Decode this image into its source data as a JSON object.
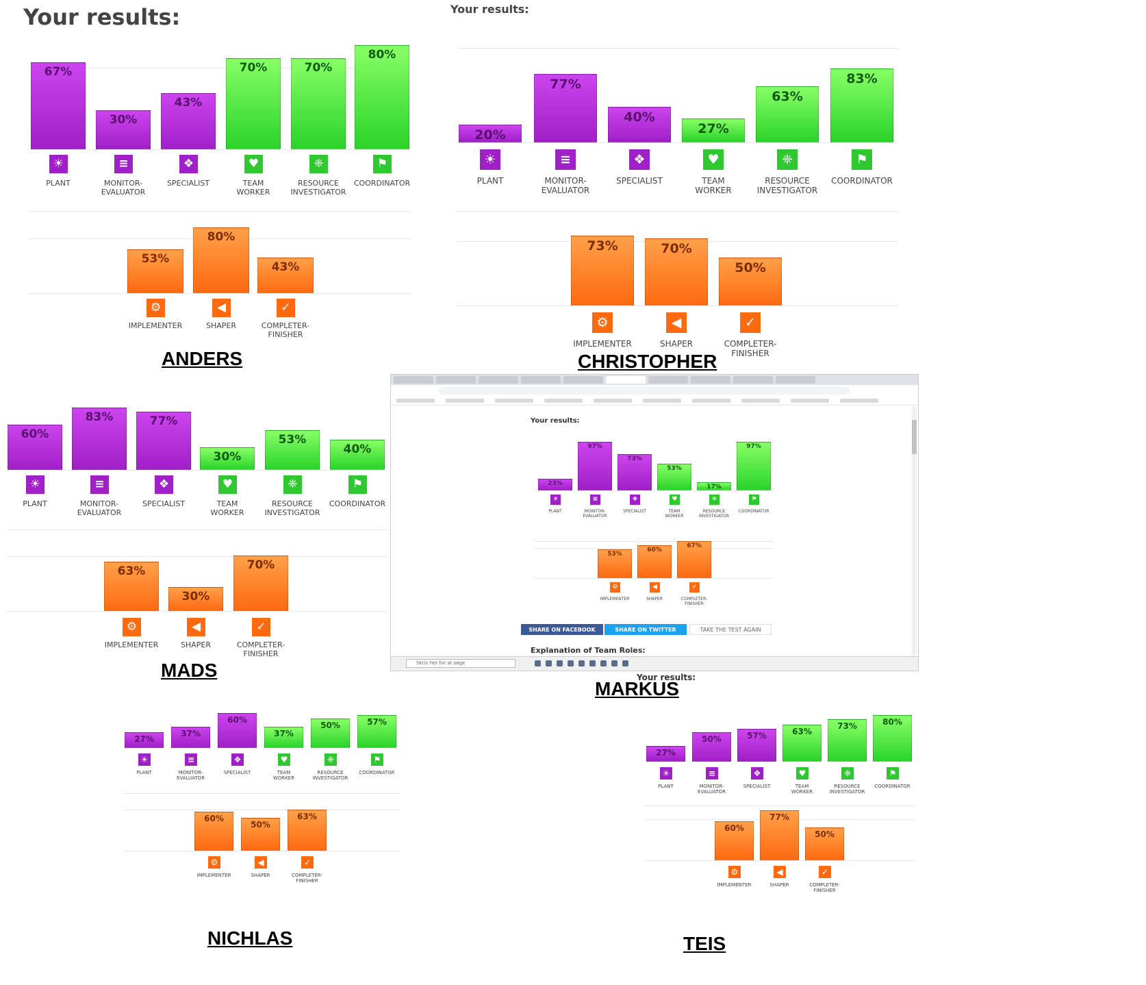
{
  "headings": {
    "primary": "Your results:",
    "secondary": "Your results:",
    "markus": "Your results:",
    "teis": "Your results:"
  },
  "markus_ui": {
    "share_facebook": "SHARE ON FACEBOOK",
    "share_twitter": "SHARE ON TWITTER",
    "retake": "TAKE THE TEST AGAIN",
    "explanation": "Explanation of Team Roles:",
    "taskbar_search": "Skriv her for at søge"
  },
  "roles": {
    "top": [
      "PLANT",
      "MONITOR-EVALUATOR",
      "SPECIALIST",
      "TEAM WORKER",
      "RESOURCE INVESTIGATOR",
      "COORDINATOR"
    ],
    "bottom": [
      "IMPLEMENTER",
      "SHAPER",
      "COMPLETER-FINISHER"
    ]
  },
  "colors": {
    "purple": "#a020c8",
    "green": "#2ad32a",
    "orange": "#ff6a10"
  },
  "icons": {
    "top": [
      "lightbulb-icon",
      "document-icon",
      "puzzle-icon",
      "handshake-icon",
      "network-icon",
      "flag-icon"
    ],
    "bottom": [
      "gears-icon",
      "megaphone-icon",
      "checkbox-icon"
    ]
  },
  "chart_data": [
    {
      "type": "bar",
      "person": "ANDERS",
      "categories": [
        "PLANT",
        "MONITOR-EVALUATOR",
        "SPECIALIST",
        "TEAM WORKER",
        "RESOURCE INVESTIGATOR",
        "COORDINATOR",
        "IMPLEMENTER",
        "SHAPER",
        "COMPLETER-FINISHER"
      ],
      "values": [
        67,
        30,
        43,
        70,
        70,
        80,
        53,
        80,
        43
      ],
      "value_labels": [
        "67%",
        "30%",
        "43%",
        "70%",
        "70%",
        "80%",
        "53%",
        "80%",
        "43%"
      ],
      "ylim": [
        0,
        100
      ]
    },
    {
      "type": "bar",
      "person": "CHRISTOPHER",
      "categories": [
        "PLANT",
        "MONITOR-EVALUATOR",
        "SPECIALIST",
        "TEAM WORKER",
        "RESOURCE INVESTIGATOR",
        "COORDINATOR",
        "IMPLEMENTER",
        "SHAPER",
        "COMPLETER-FINISHER"
      ],
      "values": [
        20,
        77,
        40,
        27,
        63,
        83,
        73,
        70,
        50
      ],
      "value_labels": [
        "20%",
        "77%",
        "40%",
        "27%",
        "63%",
        "83%",
        "73%",
        "70%",
        "50%"
      ],
      "ylim": [
        0,
        100
      ]
    },
    {
      "type": "bar",
      "person": "MADS",
      "categories": [
        "PLANT",
        "MONITOR-EVALUATOR",
        "SPECIALIST",
        "TEAM WORKER",
        "RESOURCE INVESTIGATOR",
        "COORDINATOR",
        "IMPLEMENTER",
        "SHAPER",
        "COMPLETER-FINISHER"
      ],
      "values": [
        60,
        83,
        77,
        30,
        53,
        40,
        63,
        30,
        70
      ],
      "value_labels": [
        "60%",
        "83%",
        "77%",
        "30%",
        "53%",
        "40%",
        "63%",
        "30%",
        "70%"
      ],
      "ylim": [
        0,
        100
      ]
    },
    {
      "type": "bar",
      "person": "MARKUS",
      "categories": [
        "PLANT",
        "MONITOR-EVALUATOR",
        "SPECIALIST",
        "TEAM WORKER",
        "RESOURCE INVESTIGATOR",
        "COORDINATOR",
        "IMPLEMENTER",
        "SHAPER",
        "COMPLETER-FINISHER"
      ],
      "values": [
        23,
        97,
        73,
        53,
        17,
        97,
        53,
        60,
        67
      ],
      "value_labels": [
        "23%",
        "97%",
        "73%",
        "53%",
        "17%",
        "97%",
        "53%",
        "60%",
        "67%"
      ],
      "ylim": [
        0,
        100
      ]
    },
    {
      "type": "bar",
      "person": "NICHLAS",
      "categories": [
        "PLANT",
        "MONITOR-EVALUATOR",
        "SPECIALIST",
        "TEAM WORKER",
        "RESOURCE INVESTIGATOR",
        "COORDINATOR",
        "IMPLEMENTER",
        "SHAPER",
        "COMPLETER-FINISHER"
      ],
      "values": [
        27,
        37,
        60,
        37,
        50,
        57,
        60,
        50,
        63
      ],
      "value_labels": [
        "27%",
        "37%",
        "60%",
        "37%",
        "50%",
        "57%",
        "60%",
        "50%",
        "63%"
      ],
      "ylim": [
        0,
        100
      ]
    },
    {
      "type": "bar",
      "person": "TEIS",
      "categories": [
        "PLANT",
        "MONITOR-EVALUATOR",
        "SPECIALIST",
        "TEAM WORKER",
        "RESOURCE INVESTIGATOR",
        "COORDINATOR",
        "IMPLEMENTER",
        "SHAPER",
        "COMPLETER-FINISHER"
      ],
      "values": [
        27,
        50,
        57,
        63,
        73,
        80,
        60,
        77,
        50
      ],
      "value_labels": [
        "27%",
        "50%",
        "57%",
        "63%",
        "73%",
        "80%",
        "60%",
        "77%",
        "50%"
      ],
      "ylim": [
        0,
        100
      ]
    }
  ]
}
